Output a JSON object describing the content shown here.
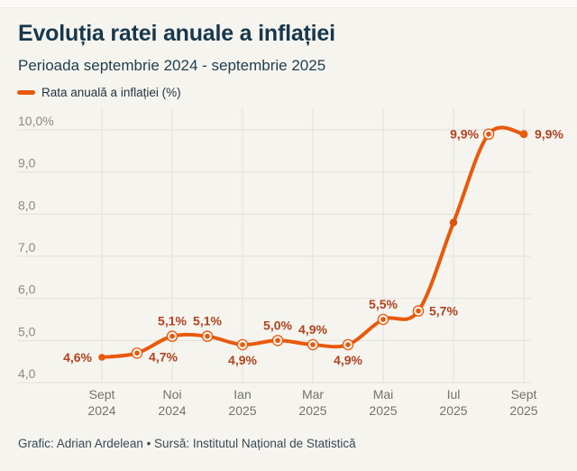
{
  "header": {
    "title": "Evoluția ratei anuale a inflației",
    "subtitle": "Perioada septembrie 2024 - septembrie 2025"
  },
  "legend": {
    "label": "Rata anuală a inflației (%)"
  },
  "footer": {
    "credit": "Grafic: Adrian Ardelean • Sursă: Institutul Național de Statistică"
  },
  "colors": {
    "background": "#f6f4ef",
    "grid": "#e4e1da",
    "line": "#e8590c",
    "jul_dot": "#d9530b",
    "value_label": "#b2431f",
    "y_tick": "#8b8a84",
    "x_tick": "#74726c",
    "title": "#17384c"
  },
  "chart_data": {
    "type": "line",
    "title": "Evoluția ratei anuale a inflației",
    "subtitle": "Perioada septembrie 2024 - septembrie 2025",
    "legend_position": "top-left",
    "grid": true,
    "ylim": [
      4,
      10
    ],
    "series": [
      {
        "name": "Rata anuală a inflației (%)",
        "values": [
          4.6,
          4.7,
          5.1,
          5.1,
          4.9,
          5.0,
          4.9,
          4.9,
          5.5,
          5.7,
          7.8,
          9.9,
          9.9
        ]
      }
    ],
    "point_labels": [
      {
        "text": "4,6%",
        "pos": "left"
      },
      {
        "text": "4,7%",
        "pos": "below-right"
      },
      {
        "text": "5,1%",
        "pos": "above"
      },
      {
        "text": "5,1%",
        "pos": "above"
      },
      {
        "text": "4,9%",
        "pos": "below"
      },
      {
        "text": "5,0%",
        "pos": "above"
      },
      {
        "text": "4,9%",
        "pos": "above"
      },
      {
        "text": "4,9%",
        "pos": "below"
      },
      {
        "text": "5,5%",
        "pos": "above"
      },
      {
        "text": "5,7%",
        "pos": "right"
      },
      null,
      {
        "text": "9,9%",
        "pos": "left"
      },
      {
        "text": "9,9%",
        "pos": "right"
      }
    ],
    "x_ticks": [
      {
        "index": 0,
        "month": "Sept",
        "year": "2024"
      },
      {
        "index": 2,
        "month": "Noi",
        "year": "2024"
      },
      {
        "index": 4,
        "month": "Ian",
        "year": "2025"
      },
      {
        "index": 6,
        "month": "Mar",
        "year": "2025"
      },
      {
        "index": 8,
        "month": "Mai",
        "year": "2025"
      },
      {
        "index": 10,
        "month": "Iul",
        "year": "2025"
      },
      {
        "index": 12,
        "month": "Sept",
        "year": "2025"
      }
    ],
    "y_ticks": [
      {
        "value": 4,
        "label": "4,0"
      },
      {
        "value": 5,
        "label": "5,0"
      },
      {
        "value": 6,
        "label": "6,0"
      },
      {
        "value": 7,
        "label": "7,0"
      },
      {
        "value": 8,
        "label": "8,0"
      },
      {
        "value": 9,
        "label": "9,0"
      },
      {
        "value": 10,
        "label": "10,0%"
      }
    ]
  }
}
